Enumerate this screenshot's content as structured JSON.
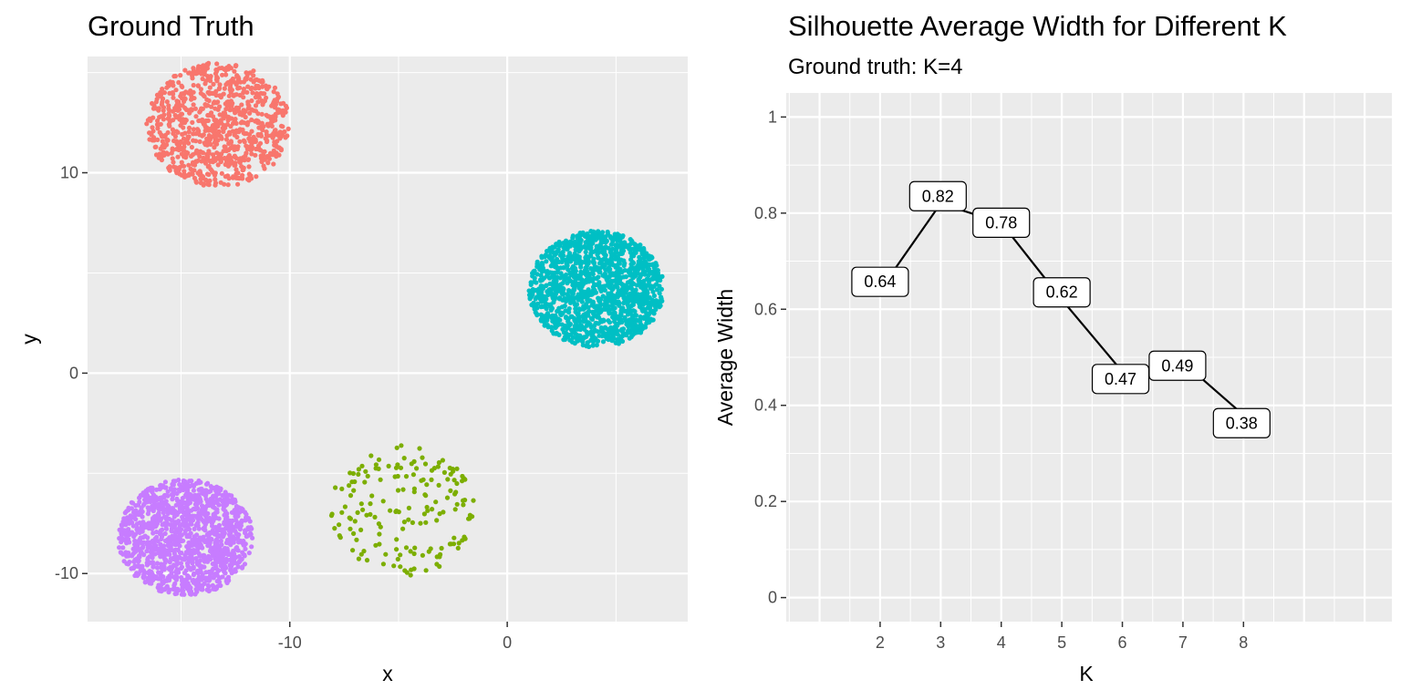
{
  "chart_data": [
    {
      "type": "scatter",
      "title": "Ground Truth",
      "xlabel": "x",
      "ylabel": "y",
      "xlim": [
        -19.3,
        8.3
      ],
      "ylim": [
        -12.4,
        15.8
      ],
      "x_ticks": [
        -10,
        0
      ],
      "y_ticks": [
        -10,
        0,
        10
      ],
      "grid": true,
      "legend": "none",
      "clusters": [
        {
          "color": "#F8766D",
          "center": [
            -13.3,
            12.4
          ],
          "radius": [
            3.3,
            3.1
          ],
          "n": 900
        },
        {
          "color": "#7CAE00",
          "center": [
            -4.7,
            -6.8
          ],
          "radius": [
            3.4,
            3.3
          ],
          "n": 170
        },
        {
          "color": "#00BFC4",
          "center": [
            4.1,
            4.2
          ],
          "radius": [
            3.1,
            2.9
          ],
          "n": 1400
        },
        {
          "color": "#C77CFF",
          "center": [
            -14.8,
            -8.2
          ],
          "radius": [
            3.1,
            2.9
          ],
          "n": 1300
        }
      ]
    },
    {
      "type": "line",
      "title": "Silhouette Average Width for Different K",
      "subtitle": "Ground truth: K=4",
      "xlabel": "K",
      "ylabel": "Average Width",
      "xlim": [
        0.45,
        10.45
      ],
      "ylim": [
        -0.05,
        1.05
      ],
      "x_ticks": [
        2,
        3,
        4,
        5,
        6,
        7,
        8
      ],
      "y_ticks": [
        0,
        0.2,
        0.4,
        0.6,
        0.8,
        1
      ],
      "y_tick_labels": [
        "0",
        "0.2",
        "0.4",
        "0.6",
        "0.8",
        "1"
      ],
      "grid": true,
      "x": [
        2,
        3,
        4,
        5,
        6,
        7,
        8
      ],
      "values": [
        0.64,
        0.82,
        0.78,
        0.62,
        0.47,
        0.49,
        0.38
      ],
      "labels": [
        "0.64",
        "0.82",
        "0.78",
        "0.62",
        "0.47",
        "0.49",
        "0.38"
      ],
      "line_color": "#000000"
    }
  ]
}
